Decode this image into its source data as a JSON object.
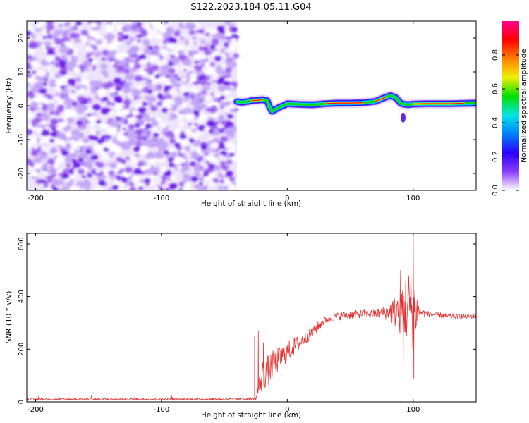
{
  "figure": {
    "title": "S122.2023.184.05.11.G04"
  },
  "chart_data": [
    {
      "type": "heatmap",
      "xlabel": "Height of straight line (km)",
      "ylabel": "Frequency (Hz)",
      "xlim": [
        -207,
        150
      ],
      "ylim": [
        -25,
        25
      ],
      "xticks": [
        -200,
        -100,
        0,
        100
      ],
      "yticks": [
        -20,
        -10,
        0,
        10,
        20
      ],
      "noise_region_x": [
        -207,
        -40
      ],
      "signal_ridge": {
        "x": [
          -40,
          -36,
          -32,
          -28,
          -24,
          -20,
          -16,
          -14,
          -12,
          -10,
          -6,
          -2,
          0,
          10,
          20,
          30,
          40,
          50,
          60,
          70,
          78,
          82,
          86,
          90,
          92,
          96,
          100,
          110,
          120,
          130,
          140,
          150
        ],
        "y": [
          1.2,
          1.0,
          1.2,
          1.5,
          1.6,
          1.8,
          1.5,
          -0.5,
          -1.6,
          -1.2,
          -0.4,
          0.2,
          0.6,
          0.4,
          0.3,
          0.6,
          0.8,
          0.8,
          0.9,
          1.3,
          2.5,
          3.0,
          2.4,
          0.8,
          0.5,
          0.3,
          0.5,
          0.6,
          0.6,
          0.6,
          0.7,
          0.8
        ]
      },
      "colorbar": {
        "label": "Normalized spectral amplitude",
        "range": [
          0,
          1
        ],
        "ticks": [
          "0.0",
          "0.2",
          "0.4",
          "0.6",
          "0.8"
        ],
        "tick_values": [
          0,
          0.2,
          0.4,
          0.6,
          0.8
        ],
        "colors": [
          "#ffffff",
          "#8a3cff",
          "#2a00ff",
          "#0080ff",
          "#00e5e5",
          "#00e000",
          "#f0f000",
          "#ff8000",
          "#ff0000",
          "#ff0090"
        ]
      }
    },
    {
      "type": "line",
      "xlabel": "Height of straight line (km)",
      "ylabel": "SNR (10 * v/v)",
      "xlim": [
        -207,
        150
      ],
      "ylim": [
        0,
        640
      ],
      "xticks": [
        -200,
        -100,
        0,
        100
      ],
      "yticks": [
        0,
        200,
        400,
        600
      ],
      "series": [
        {
          "color": "#e83030",
          "envelope": {
            "x": [
              -207,
              -150,
              -100,
              -50,
              -25,
              -20,
              -15,
              -10,
              -5,
              0,
              5,
              10,
              15,
              20,
              25,
              30,
              40,
              50,
              60,
              70,
              80,
              85,
              90,
              95,
              100,
              105,
              110,
              120,
              130,
              140,
              150
            ],
            "mean": [
              10,
              10,
              10,
              10,
              12,
              100,
              120,
              150,
              170,
              190,
              210,
              225,
              245,
              265,
              290,
              310,
              325,
              330,
              335,
              335,
              340,
              345,
              350,
              360,
              360,
              340,
              335,
              330,
              325,
              325,
              325
            ],
            "spread": [
              4,
              4,
              4,
              4,
              6,
              60,
              60,
              50,
              45,
              40,
              35,
              30,
              25,
              20,
              18,
              15,
              15,
              15,
              15,
              15,
              30,
              60,
              100,
              140,
              160,
              20,
              12,
              10,
              10,
              10,
              10
            ]
          },
          "peaks": [
            {
              "x": -26,
              "y": 250
            },
            {
              "x": -23,
              "y": 270
            },
            {
              "x": -19,
              "y": 225
            },
            {
              "x": 90,
              "y": 500
            },
            {
              "x": 92,
              "y": 40
            },
            {
              "x": 96,
              "y": 520
            },
            {
              "x": 100,
              "y": 635
            },
            {
              "x": 100.5,
              "y": 90
            }
          ]
        }
      ]
    }
  ]
}
